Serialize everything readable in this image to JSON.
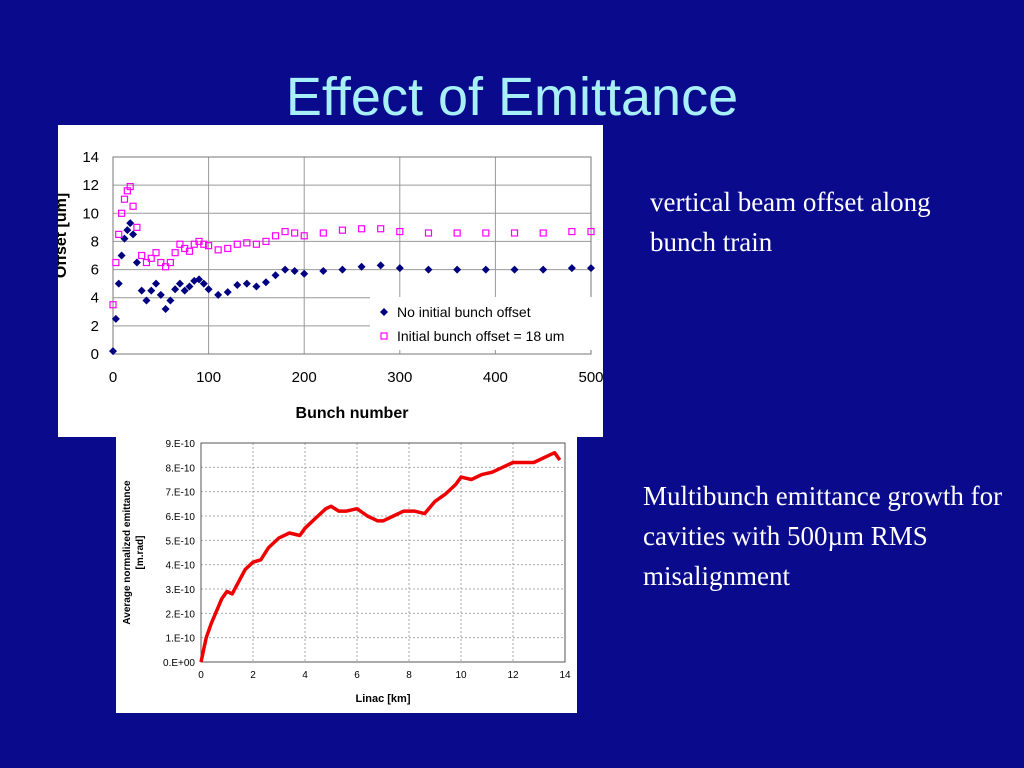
{
  "slide": {
    "title": "Effect of Emittance",
    "caption_top": "vertical beam offset along bunch train",
    "caption_bottom": "Multibunch emittance growth for cavities with 500µm RMS misalignment"
  },
  "colors": {
    "background": "#0a0a8c",
    "title": "#a8f0f8",
    "series_navy": "#000080",
    "series_magenta": "#ff00ff",
    "series_red": "#ee0000"
  },
  "chart_data": [
    {
      "type": "scatter",
      "title": "",
      "xlabel": "Bunch number",
      "ylabel": "Offset [um]",
      "xlim": [
        0,
        500
      ],
      "ylim": [
        0,
        14
      ],
      "xticks": [
        "0",
        "100",
        "200",
        "300",
        "400",
        "500"
      ],
      "yticks": [
        "0",
        "2",
        "4",
        "6",
        "8",
        "10",
        "12",
        "14"
      ],
      "grid": true,
      "legend_position": "bottom-right",
      "series": [
        {
          "name": "No initial bunch offset",
          "marker": "filled-diamond",
          "color": "#000080",
          "x": [
            0,
            3,
            6,
            9,
            12,
            15,
            18,
            21,
            25,
            30,
            35,
            40,
            45,
            50,
            55,
            60,
            65,
            70,
            75,
            80,
            85,
            90,
            95,
            100,
            110,
            120,
            130,
            140,
            150,
            160,
            170,
            180,
            190,
            200,
            220,
            240,
            260,
            280,
            300,
            330,
            360,
            390,
            420,
            450,
            480,
            500
          ],
          "y": [
            0.2,
            2.5,
            5.0,
            7.0,
            8.2,
            8.8,
            9.3,
            8.5,
            6.5,
            4.5,
            3.8,
            4.5,
            5.0,
            4.2,
            3.2,
            3.8,
            4.6,
            5.0,
            4.5,
            4.8,
            5.2,
            5.3,
            5.0,
            4.6,
            4.2,
            4.4,
            4.9,
            5.0,
            4.8,
            5.1,
            5.6,
            6.0,
            5.9,
            5.7,
            5.9,
            6.0,
            6.2,
            6.3,
            6.1,
            6.0,
            6.0,
            6.0,
            6.0,
            6.0,
            6.1,
            6.1
          ]
        },
        {
          "name": "Initial bunch offset = 18 um",
          "marker": "open-square",
          "color": "#ff00ff",
          "x": [
            0,
            3,
            6,
            9,
            12,
            15,
            18,
            21,
            25,
            30,
            35,
            40,
            45,
            50,
            55,
            60,
            65,
            70,
            75,
            80,
            85,
            90,
            95,
            100,
            110,
            120,
            130,
            140,
            150,
            160,
            170,
            180,
            190,
            200,
            220,
            240,
            260,
            280,
            300,
            330,
            360,
            390,
            420,
            450,
            480,
            500
          ],
          "y": [
            3.5,
            6.5,
            8.5,
            10.0,
            11.0,
            11.6,
            11.9,
            10.5,
            9.0,
            7.0,
            6.5,
            6.8,
            7.2,
            6.5,
            6.2,
            6.5,
            7.2,
            7.8,
            7.5,
            7.3,
            7.8,
            8.0,
            7.8,
            7.7,
            7.4,
            7.5,
            7.8,
            7.9,
            7.8,
            8.0,
            8.4,
            8.7,
            8.6,
            8.4,
            8.6,
            8.8,
            8.9,
            8.9,
            8.7,
            8.6,
            8.6,
            8.6,
            8.6,
            8.6,
            8.7,
            8.7
          ]
        }
      ]
    },
    {
      "type": "line",
      "title": "",
      "xlabel": "Linac [km]",
      "ylabel": "Average normalized emittance [m.rad]",
      "xlim": [
        0,
        14
      ],
      "ylim": [
        0,
        9e-10
      ],
      "xticks": [
        "0",
        "2",
        "4",
        "6",
        "8",
        "10",
        "12",
        "14"
      ],
      "yticks": [
        "0.E+00",
        "1.E-10",
        "2.E-10",
        "3.E-10",
        "4.E-10",
        "5.E-10",
        "6.E-10",
        "7.E-10",
        "8.E-10",
        "9.E-10"
      ],
      "grid": true,
      "series": [
        {
          "color": "#ee0000",
          "x": [
            0,
            0.2,
            0.4,
            0.6,
            0.8,
            1.0,
            1.2,
            1.4,
            1.7,
            2.0,
            2.3,
            2.6,
            3.0,
            3.4,
            3.8,
            4.0,
            4.4,
            4.8,
            5.0,
            5.3,
            5.6,
            6.0,
            6.4,
            6.8,
            7.0,
            7.4,
            7.8,
            8.2,
            8.6,
            9.0,
            9.4,
            9.8,
            10.0,
            10.4,
            10.8,
            11.2,
            11.6,
            12.0,
            12.4,
            12.8,
            13.2,
            13.6,
            13.8
          ],
          "y": [
            0,
            1e-10,
            1.6e-10,
            2.1e-10,
            2.6e-10,
            2.9e-10,
            2.8e-10,
            3.2e-10,
            3.8e-10,
            4.1e-10,
            4.2e-10,
            4.7e-10,
            5.1e-10,
            5.3e-10,
            5.2e-10,
            5.5e-10,
            5.9e-10,
            6.3e-10,
            6.4e-10,
            6.2e-10,
            6.2e-10,
            6.3e-10,
            6e-10,
            5.8e-10,
            5.8e-10,
            6e-10,
            6.2e-10,
            6.2e-10,
            6.1e-10,
            6.6e-10,
            6.9e-10,
            7.3e-10,
            7.6e-10,
            7.5e-10,
            7.7e-10,
            7.8e-10,
            8e-10,
            8.2e-10,
            8.2e-10,
            8.2e-10,
            8.4e-10,
            8.6e-10,
            8.3e-10
          ]
        }
      ]
    }
  ]
}
